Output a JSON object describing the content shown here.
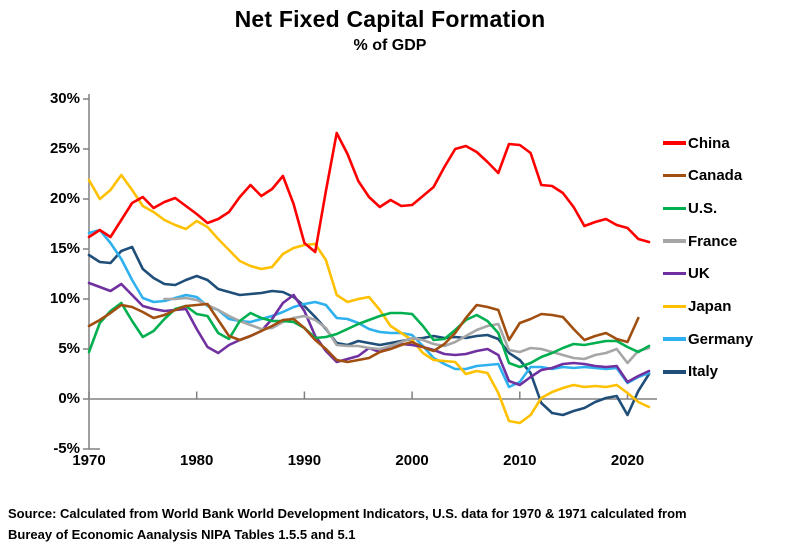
{
  "page": {
    "title": "Net Fixed Capital Formation",
    "subtitle": "% of GDP",
    "source_line1": "Source:  Calculated from World Bank World Development Indicators, U.S. data for 1970 & 1971 calculated from",
    "source_line2": "Bureay of Economic Aanalysis NIPA Tables 1.5.5 and 5.1"
  },
  "chart_data": {
    "type": "line",
    "title": "Net Fixed Capital Formation",
    "subtitle": "% of GDP",
    "xlabel": "",
    "ylabel": "",
    "grid": false,
    "legend_position": "right",
    "zero_line": true,
    "axis_color": "#808080",
    "ylim": [
      -5,
      30
    ],
    "x_ticks": [
      1970,
      1980,
      1990,
      2000,
      2010,
      2020
    ],
    "y_ticks": [
      {
        "value": 30,
        "label": "30%"
      },
      {
        "value": 25,
        "label": "25%"
      },
      {
        "value": 20,
        "label": "20%"
      },
      {
        "value": 15,
        "label": "15%"
      },
      {
        "value": 10,
        "label": "10%"
      },
      {
        "value": 5,
        "label": "5%"
      },
      {
        "value": 0,
        "label": "0%"
      },
      {
        "value": -5,
        "label": "-5%"
      }
    ],
    "years": [
      1970,
      1971,
      1972,
      1973,
      1974,
      1975,
      1976,
      1977,
      1978,
      1979,
      1980,
      1981,
      1982,
      1983,
      1984,
      1985,
      1986,
      1987,
      1988,
      1989,
      1990,
      1991,
      1992,
      1993,
      1994,
      1995,
      1996,
      1997,
      1998,
      1999,
      2000,
      2001,
      2002,
      2003,
      2004,
      2005,
      2006,
      2007,
      2008,
      2009,
      2010,
      2011,
      2012,
      2013,
      2014,
      2015,
      2016,
      2017,
      2018,
      2019,
      2020,
      2021,
      2022
    ],
    "series": [
      {
        "name": "China",
        "color": "#FF0000",
        "values": [
          16.2,
          16.9,
          16.2,
          17.9,
          19.6,
          20.2,
          19.1,
          19.7,
          20.1,
          19.3,
          18.5,
          17.6,
          18.0,
          18.7,
          20.2,
          21.4,
          20.3,
          21.0,
          22.3,
          19.5,
          15.6,
          14.7,
          20.8,
          26.6,
          24.5,
          21.8,
          20.2,
          19.2,
          19.9,
          19.3,
          19.4,
          20.3,
          21.2,
          23.2,
          25.0,
          25.3,
          24.7,
          23.7,
          22.6,
          25.5,
          25.4,
          24.6,
          21.4,
          21.3,
          20.6,
          19.2,
          17.3,
          17.7,
          18.0,
          17.4,
          17.1,
          16.0,
          15.7
        ]
      },
      {
        "name": "Canada",
        "color": "#A14F10",
        "values": [
          7.3,
          7.9,
          8.6,
          9.4,
          9.2,
          8.7,
          8.1,
          8.4,
          8.9,
          9.3,
          9.4,
          9.5,
          7.9,
          6.3,
          5.9,
          6.3,
          6.8,
          7.3,
          7.9,
          8.0,
          7.1,
          5.9,
          5.0,
          3.9,
          3.7,
          3.9,
          4.1,
          4.7,
          5.0,
          5.4,
          5.7,
          5.2,
          4.8,
          5.5,
          6.6,
          8.1,
          9.4,
          9.2,
          8.9,
          5.9,
          7.6,
          8.0,
          8.5,
          8.4,
          8.2,
          7.0,
          5.9,
          6.3,
          6.6,
          6.0,
          5.7,
          8.1,
          null
        ]
      },
      {
        "name": "U.S.",
        "color": "#00B050",
        "values": [
          4.7,
          7.6,
          8.8,
          9.6,
          7.8,
          6.2,
          6.8,
          8.0,
          9.0,
          9.3,
          8.5,
          8.3,
          6.6,
          6.0,
          7.8,
          8.6,
          8.1,
          7.8,
          7.8,
          7.7,
          7.1,
          6.1,
          6.2,
          6.5,
          7.0,
          7.5,
          7.9,
          8.3,
          8.6,
          8.6,
          8.5,
          7.3,
          5.9,
          6.0,
          6.9,
          7.9,
          8.4,
          7.8,
          6.6,
          3.6,
          3.2,
          3.6,
          4.2,
          4.6,
          5.1,
          5.5,
          5.4,
          5.6,
          5.8,
          5.8,
          5.2,
          4.7,
          5.3
        ]
      },
      {
        "name": "France",
        "color": "#A6A6A6",
        "values": [
          null,
          null,
          null,
          null,
          null,
          null,
          null,
          10.0,
          10.0,
          10.1,
          9.9,
          9.4,
          8.9,
          8.3,
          7.8,
          7.4,
          7.0,
          7.1,
          7.7,
          8.1,
          8.3,
          7.9,
          7.1,
          5.4,
          5.3,
          5.3,
          5.1,
          5.0,
          5.3,
          5.7,
          6.1,
          5.9,
          5.5,
          5.3,
          5.7,
          6.3,
          6.9,
          7.3,
          7.5,
          4.9,
          4.7,
          5.1,
          5.0,
          4.7,
          4.4,
          4.1,
          4.0,
          4.4,
          4.6,
          5.0,
          3.6,
          4.8,
          5.1
        ]
      },
      {
        "name": "UK",
        "color": "#7030A0",
        "values": [
          11.6,
          11.2,
          10.8,
          11.5,
          10.4,
          9.3,
          9.0,
          8.8,
          8.9,
          9.0,
          7.0,
          5.2,
          4.6,
          5.4,
          5.9,
          6.3,
          6.8,
          8.0,
          9.6,
          10.4,
          8.8,
          6.3,
          4.8,
          3.7,
          4.0,
          4.3,
          5.1,
          4.7,
          5.3,
          5.5,
          5.4,
          5.2,
          4.9,
          4.5,
          4.4,
          4.5,
          4.8,
          5.0,
          4.4,
          1.8,
          1.4,
          2.2,
          2.9,
          3.1,
          3.5,
          3.6,
          3.5,
          3.3,
          3.2,
          3.3,
          1.7,
          2.3,
          2.8
        ]
      },
      {
        "name": "Japan",
        "color": "#FFC000",
        "values": [
          21.9,
          20.0,
          20.9,
          22.4,
          20.9,
          19.3,
          18.7,
          17.9,
          17.4,
          17.0,
          17.8,
          17.2,
          16.0,
          14.9,
          13.8,
          13.3,
          13.0,
          13.2,
          14.5,
          15.1,
          15.4,
          15.5,
          13.9,
          10.4,
          9.7,
          10.0,
          10.2,
          8.9,
          7.3,
          6.6,
          5.9,
          4.6,
          3.9,
          3.8,
          3.7,
          2.5,
          2.8,
          2.6,
          0.6,
          -2.2,
          -2.4,
          -1.6,
          0.1,
          0.7,
          1.1,
          1.4,
          1.2,
          1.3,
          1.2,
          1.4,
          0.6,
          -0.3,
          -0.8
        ]
      },
      {
        "name": "Germany",
        "color": "#2EB1EE",
        "values": [
          16.6,
          16.9,
          15.6,
          14.0,
          11.9,
          10.1,
          9.7,
          9.8,
          10.1,
          10.4,
          10.2,
          9.3,
          8.9,
          8.0,
          7.8,
          7.7,
          8.0,
          8.3,
          8.7,
          9.2,
          9.5,
          9.7,
          9.4,
          8.1,
          8.0,
          7.6,
          7.0,
          6.7,
          6.6,
          6.6,
          6.4,
          5.3,
          4.1,
          3.5,
          3.0,
          3.0,
          3.3,
          3.4,
          3.5,
          1.2,
          1.7,
          3.2,
          3.2,
          3.0,
          3.2,
          3.1,
          3.2,
          3.1,
          3.0,
          3.1,
          1.6,
          2.2,
          2.6
        ]
      },
      {
        "name": "Italy",
        "color": "#1F4E79",
        "values": [
          14.4,
          13.7,
          13.6,
          14.8,
          15.2,
          13.0,
          12.1,
          11.5,
          11.4,
          11.9,
          12.3,
          11.9,
          11.0,
          10.7,
          10.4,
          10.5,
          10.6,
          10.8,
          10.7,
          10.2,
          9.3,
          8.2,
          7.0,
          5.6,
          5.4,
          5.8,
          5.6,
          5.4,
          5.6,
          5.8,
          6.0,
          6.1,
          6.3,
          6.1,
          6.2,
          6.1,
          6.3,
          6.4,
          6.0,
          4.6,
          3.9,
          2.6,
          -0.4,
          -1.4,
          -1.6,
          -1.2,
          -0.9,
          -0.3,
          0.1,
          0.3,
          -1.6,
          0.8,
          2.5
        ]
      }
    ]
  }
}
